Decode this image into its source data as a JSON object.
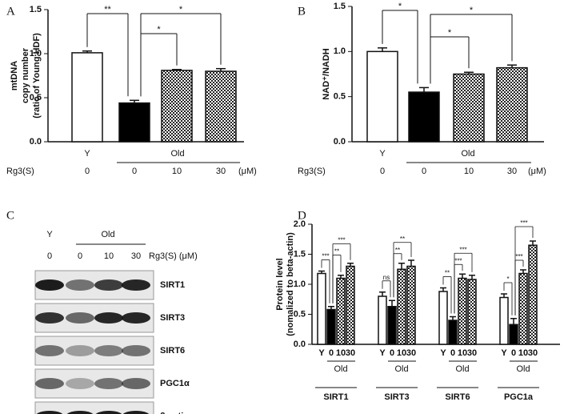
{
  "chart_data": [
    {
      "type": "bar",
      "panel": "A",
      "y_label": [
        "mtDNA",
        "copy number",
        "(ratio of Young HDF)"
      ],
      "groups": [
        "Y",
        "Old"
      ],
      "treatment_label": "Rg3(S)",
      "unit": "(μM)",
      "categories": [
        "0",
        "0",
        "10",
        "30"
      ],
      "values": [
        1.01,
        0.44,
        0.81,
        0.8
      ],
      "errors": [
        0.02,
        0.03,
        0.01,
        0.03
      ],
      "fills": [
        "white",
        "black",
        "checker",
        "checker"
      ],
      "ylim": [
        0,
        1.5
      ],
      "yticks": [
        {
          "value": 0,
          "label": "0.0"
        },
        0.5,
        {
          "value": 1,
          "label": "1.0"
        },
        1.5
      ],
      "significance": [
        "**",
        "*",
        "*"
      ]
    },
    {
      "type": "bar",
      "panel": "B",
      "y_label": [
        "NAD⁺/NADH"
      ],
      "groups": [
        "Y",
        "Old"
      ],
      "treatment_label": "Rg3(S)",
      "unit": "(μM)",
      "categories": [
        "0",
        "0",
        "10",
        "30"
      ],
      "values": [
        1.0,
        0.55,
        0.75,
        0.82
      ],
      "errors": [
        0.04,
        0.05,
        0.02,
        0.03
      ],
      "fills": [
        "white",
        "black",
        "checker",
        "checker"
      ],
      "ylim": [
        0,
        1.5
      ],
      "yticks": [
        {
          "value": 0,
          "label": "0.0"
        },
        0.5,
        {
          "value": 1,
          "label": "1.0"
        },
        1.5
      ],
      "significance": [
        "*",
        "*",
        "*"
      ]
    },
    {
      "type": "grouped_bar",
      "panel": "D",
      "y_label": [
        "Protein level",
        "(nomalized to beta-actin)"
      ],
      "group_label": "Old",
      "categories": [
        "SIRT1",
        "SIRT3",
        "SIRT6",
        "PGC1a"
      ],
      "series": [
        {
          "name": "Y",
          "fill": "white",
          "values": [
            1.18,
            0.8,
            0.88,
            0.78
          ],
          "errors": [
            0.04,
            0.07,
            0.06,
            0.06
          ]
        },
        {
          "name": "0",
          "fill": "black",
          "values": [
            0.58,
            0.63,
            0.4,
            0.33
          ],
          "errors": [
            0.05,
            0.1,
            0.06,
            0.1
          ]
        },
        {
          "name": "10",
          "fill": "checker",
          "values": [
            1.1,
            1.25,
            1.1,
            1.18
          ],
          "errors": [
            0.05,
            0.1,
            0.07,
            0.06
          ]
        },
        {
          "name": "30",
          "fill": "checker",
          "values": [
            1.3,
            1.3,
            1.08,
            1.65
          ],
          "errors": [
            0.05,
            0.1,
            0.07,
            0.07
          ]
        }
      ],
      "ylim": [
        0,
        2
      ],
      "yticks": [
        {
          "value": 0,
          "label": "0.0"
        },
        0.5,
        {
          "value": 1,
          "label": "1.0"
        },
        1.5,
        {
          "value": 2,
          "label": "2.0"
        }
      ],
      "significance": [
        [
          "***",
          "**",
          "***"
        ],
        [
          "ns",
          "**",
          "**"
        ],
        [
          "**",
          "***",
          "***"
        ],
        [
          "*",
          "***",
          "***"
        ]
      ]
    }
  ],
  "blot": {
    "panel": "C",
    "groups": [
      "Y",
      "Old"
    ],
    "doses": [
      "0",
      "0",
      "10",
      "30"
    ],
    "treatment_label": "Rg3(S) (μM)",
    "proteins": [
      "SIRT1",
      "SIRT3",
      "SIRT6",
      "PGC1α",
      "β-actin"
    ]
  }
}
